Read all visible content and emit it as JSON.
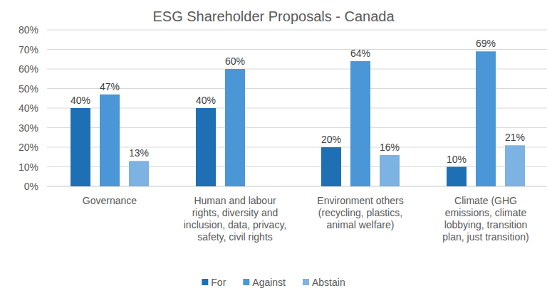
{
  "chart_data": {
    "type": "bar",
    "title": "ESG Shareholder Proposals - Canada",
    "categories": [
      "Governance",
      "Human and labour rights, diversity and inclusion, data, privacy, safety, civil rights",
      "Environment others (recycling, plastics, animal welfare)",
      "Climate (GHG emissions, climate lobbying, transition plan, just transition)"
    ],
    "series": [
      {
        "name": "For",
        "color": "#1f6fb5",
        "values": [
          40,
          40,
          20,
          10
        ],
        "value_labels": [
          "40%",
          "40%",
          "20%",
          "10%"
        ]
      },
      {
        "name": "Against",
        "color": "#4a96d6",
        "values": [
          47,
          60,
          64,
          69
        ],
        "value_labels": [
          "47%",
          "60%",
          "64%",
          "69%"
        ]
      },
      {
        "name": "Abstain",
        "color": "#7db3e2",
        "values": [
          13,
          null,
          16,
          21
        ],
        "value_labels": [
          "13%",
          null,
          "16%",
          "21%"
        ]
      }
    ],
    "ylim": [
      0,
      80
    ],
    "yticks": [
      {
        "value": 0,
        "label": "0%"
      },
      {
        "value": 10,
        "label": "10%"
      },
      {
        "value": 20,
        "label": "20%"
      },
      {
        "value": 30,
        "label": "30%"
      },
      {
        "value": 40,
        "label": "40%"
      },
      {
        "value": 50,
        "label": "50%"
      },
      {
        "value": 60,
        "label": "60%"
      },
      {
        "value": 70,
        "label": "70%"
      },
      {
        "value": 80,
        "label": "80%"
      }
    ],
    "grid": true,
    "data_labels": true,
    "legend": "bottom"
  }
}
